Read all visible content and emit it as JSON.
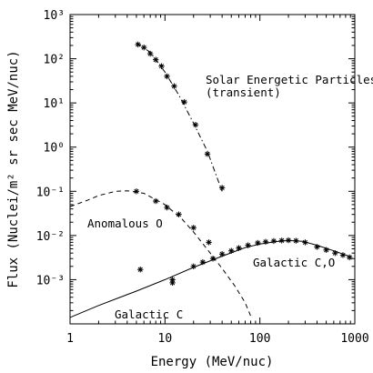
{
  "chart_data": {
    "type": "scatter",
    "xlabel": "Energy (MeV/nuc)",
    "ylabel": "Flux (Nuclei/m² sr sec MeV/nuc)",
    "x_scale": "log",
    "y_scale": "log",
    "xlim": [
      1,
      1000
    ],
    "ylim": [
      0.0001,
      1000
    ],
    "x_ticks": [
      {
        "value": 1,
        "label": "1"
      },
      {
        "value": 10,
        "label": "10"
      },
      {
        "value": 100,
        "label": "100"
      },
      {
        "value": 1000,
        "label": "1000"
      }
    ],
    "y_ticks": [
      {
        "value": 0.001,
        "label": "10⁻³"
      },
      {
        "value": 0.01,
        "label": "10⁻²"
      },
      {
        "value": 0.1,
        "label": "10⁻¹"
      },
      {
        "value": 1,
        "label": "10⁰"
      },
      {
        "value": 10,
        "label": "10¹"
      },
      {
        "value": 100,
        "label": "10²"
      },
      {
        "value": 1000,
        "label": "10³"
      }
    ],
    "grid": false,
    "series": [
      {
        "name": "Solar Energetic Particles (transient)",
        "label_lines": [
          "Solar Energetic Particles",
          "(transient)"
        ],
        "marker": "star",
        "line": "dashdot",
        "points": [
          {
            "x": 5.2,
            "y": 210
          },
          {
            "x": 6.0,
            "y": 180
          },
          {
            "x": 7.0,
            "y": 130
          },
          {
            "x": 8.0,
            "y": 95
          },
          {
            "x": 9.2,
            "y": 68
          },
          {
            "x": 10.5,
            "y": 40
          },
          {
            "x": 12.5,
            "y": 24
          },
          {
            "x": 16,
            "y": 10.5
          },
          {
            "x": 21,
            "y": 3.2
          },
          {
            "x": 28,
            "y": 0.7
          },
          {
            "x": 40,
            "y": 0.12
          }
        ],
        "fit": [
          {
            "x": 5.0,
            "y": 230
          },
          {
            "x": 7.0,
            "y": 140
          },
          {
            "x": 10,
            "y": 50
          },
          {
            "x": 14,
            "y": 15
          },
          {
            "x": 20,
            "y": 3.5
          },
          {
            "x": 28,
            "y": 0.8
          },
          {
            "x": 40,
            "y": 0.1
          }
        ]
      },
      {
        "name": "Anomalous O",
        "label_lines": [
          "Anomalous O"
        ],
        "marker": "star",
        "line": "dashed",
        "points": [
          {
            "x": 5.0,
            "y": 0.1
          },
          {
            "x": 8.0,
            "y": 0.06
          },
          {
            "x": 10.5,
            "y": 0.043
          },
          {
            "x": 14,
            "y": 0.03
          },
          {
            "x": 20,
            "y": 0.015
          },
          {
            "x": 29,
            "y": 0.007
          },
          {
            "x": 12,
            "y": 0.001
          }
        ],
        "fit": [
          {
            "x": 1,
            "y": 0.045
          },
          {
            "x": 1.5,
            "y": 0.062
          },
          {
            "x": 2,
            "y": 0.08
          },
          {
            "x": 3,
            "y": 0.1
          },
          {
            "x": 4,
            "y": 0.103
          },
          {
            "x": 6,
            "y": 0.09
          },
          {
            "x": 10,
            "y": 0.05
          },
          {
            "x": 15,
            "y": 0.024
          },
          {
            "x": 20,
            "y": 0.012
          },
          {
            "x": 30,
            "y": 0.004
          },
          {
            "x": 40,
            "y": 0.0018
          },
          {
            "x": 55,
            "y": 0.0007
          },
          {
            "x": 70,
            "y": 0.0003
          },
          {
            "x": 80,
            "y": 0.00015
          }
        ]
      },
      {
        "name": "Galactic C,O",
        "label_lines": [
          "Galactic C,O"
        ],
        "marker": "star",
        "line": "solid",
        "points": [
          {
            "x": 5.5,
            "y": 0.0017
          },
          {
            "x": 12,
            "y": 0.00085
          },
          {
            "x": 20,
            "y": 0.002
          },
          {
            "x": 25,
            "y": 0.0025
          },
          {
            "x": 32,
            "y": 0.003
          },
          {
            "x": 40,
            "y": 0.0038
          },
          {
            "x": 50,
            "y": 0.0045
          },
          {
            "x": 60,
            "y": 0.0052
          },
          {
            "x": 75,
            "y": 0.006
          },
          {
            "x": 95,
            "y": 0.0068
          },
          {
            "x": 115,
            "y": 0.0072
          },
          {
            "x": 140,
            "y": 0.0075
          },
          {
            "x": 170,
            "y": 0.0077
          },
          {
            "x": 200,
            "y": 0.0078
          },
          {
            "x": 240,
            "y": 0.0076
          },
          {
            "x": 300,
            "y": 0.007
          },
          {
            "x": 400,
            "y": 0.0055
          },
          {
            "x": 500,
            "y": 0.0047
          },
          {
            "x": 620,
            "y": 0.004
          },
          {
            "x": 750,
            "y": 0.0036
          },
          {
            "x": 880,
            "y": 0.0032
          }
        ],
        "fit": [
          {
            "x": 1,
            "y": 0.00014
          },
          {
            "x": 2,
            "y": 0.00026
          },
          {
            "x": 5,
            "y": 0.00055
          },
          {
            "x": 10,
            "y": 0.001
          },
          {
            "x": 20,
            "y": 0.0019
          },
          {
            "x": 40,
            "y": 0.0034
          },
          {
            "x": 70,
            "y": 0.0053
          },
          {
            "x": 100,
            "y": 0.0064
          },
          {
            "x": 150,
            "y": 0.0073
          },
          {
            "x": 200,
            "y": 0.0077
          },
          {
            "x": 280,
            "y": 0.0074
          },
          {
            "x": 400,
            "y": 0.006
          },
          {
            "x": 600,
            "y": 0.0045
          },
          {
            "x": 900,
            "y": 0.0033
          }
        ]
      },
      {
        "name": "Galactic C",
        "label_lines": [
          "Galactic C"
        ],
        "marker": "none",
        "line": "none",
        "points": []
      }
    ]
  }
}
